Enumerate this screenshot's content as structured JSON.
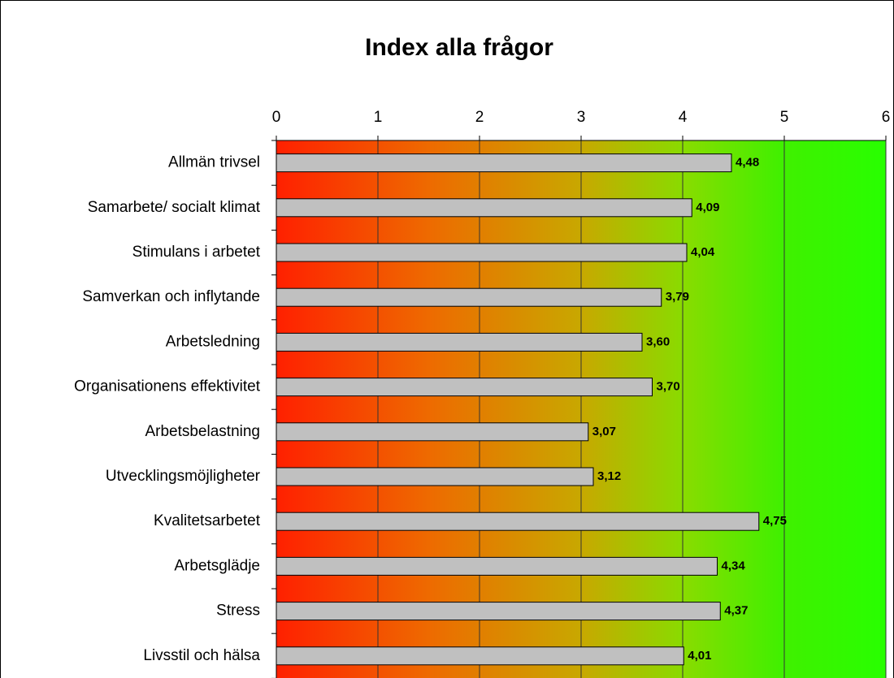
{
  "chart_data": {
    "type": "bar",
    "orientation": "horizontal",
    "title": "Index alla frågor",
    "categories": [
      "Allmän trivsel",
      "Samarbete/ socialt klimat",
      "Stimulans i arbetet",
      "Samverkan och inflytande",
      "Arbetsledning",
      "Organisationens effektivitet",
      "Arbetsbelastning",
      "Utvecklingsmöjligheter",
      "Kvalitetsarbetet",
      "Arbetsglädje",
      "Stress",
      "Livsstil och hälsa"
    ],
    "values": [
      4.48,
      4.09,
      4.04,
      3.79,
      3.6,
      3.7,
      3.07,
      3.12,
      4.75,
      4.34,
      4.37,
      4.01
    ],
    "value_labels": [
      "4,48",
      "4,09",
      "4,04",
      "3,79",
      "3,60",
      "3,70",
      "3,07",
      "3,12",
      "4,75",
      "4,34",
      "4,37",
      "4,01"
    ],
    "color": "#c0c0c0",
    "xlim": [
      0,
      6
    ],
    "xticks": [
      0,
      1,
      2,
      3,
      4,
      5,
      6
    ],
    "grid": true
  }
}
